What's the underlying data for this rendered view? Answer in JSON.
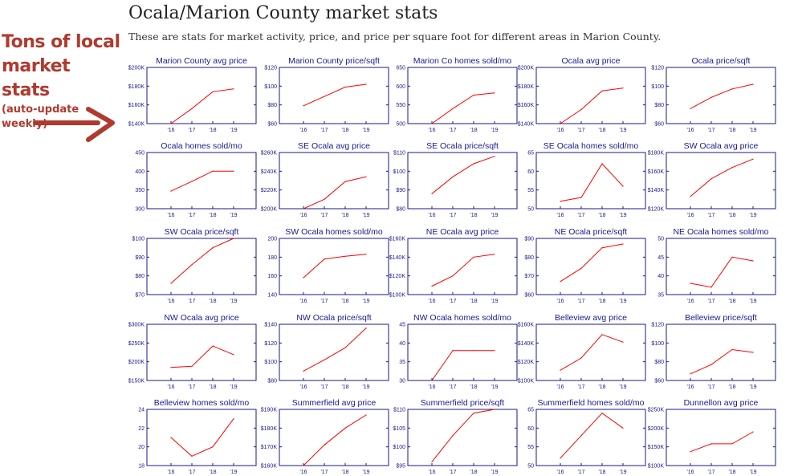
{
  "header": {
    "title": "Ocala/Marion County market stats",
    "subtitle": "These are stats for market activity, price, and price per square foot for different areas in Marion County."
  },
  "promo": {
    "line1": "Tons of local",
    "line2": "market stats",
    "line3": "(auto-update weekly)",
    "color": "#b03a2e",
    "icon": "arrow-right-icon"
  },
  "colors": {
    "axis": "#1a1a8c",
    "line": "#ff0000",
    "text": "#1a1a8c"
  },
  "chart_data": [
    {
      "type": "line",
      "title": "Marion County avg price",
      "categories": [
        "'16",
        "'17",
        "'18",
        "'19"
      ],
      "values": [
        140000,
        156000,
        174000,
        177000
      ],
      "ylim": [
        140000,
        200000
      ],
      "yticks": [
        140000,
        160000,
        180000,
        200000
      ],
      "yticklabels": [
        "$140K",
        "$160K",
        "$180K",
        "$200K"
      ]
    },
    {
      "type": "line",
      "title": "Marion County price/sqft",
      "categories": [
        "'16",
        "'17",
        "'18",
        "'19"
      ],
      "values": [
        79,
        89,
        99,
        102
      ],
      "ylim": [
        60,
        120
      ],
      "yticks": [
        60,
        80,
        100,
        120
      ],
      "yticklabels": [
        "$60",
        "$80",
        "$100",
        "$120"
      ]
    },
    {
      "type": "line",
      "title": "Marion Co homes sold/mo",
      "categories": [
        "'16",
        "'17",
        "'18",
        "'19"
      ],
      "values": [
        500,
        540,
        576,
        582
      ],
      "ylim": [
        500,
        650
      ],
      "yticks": [
        500,
        550,
        600,
        650
      ],
      "yticklabels": [
        "500",
        "550",
        "600",
        "650"
      ]
    },
    {
      "type": "line",
      "title": "Ocala avg price",
      "categories": [
        "'16",
        "'17",
        "'18",
        "'19"
      ],
      "values": [
        140000,
        155000,
        175000,
        178000
      ],
      "ylim": [
        140000,
        200000
      ],
      "yticks": [
        140000,
        160000,
        180000,
        200000
      ],
      "yticklabels": [
        "$140K",
        "$160K",
        "$180K",
        "$200K"
      ]
    },
    {
      "type": "line",
      "title": "Ocala price/sqft",
      "categories": [
        "'16",
        "'17",
        "'18",
        "'19"
      ],
      "values": [
        76,
        88,
        97,
        102
      ],
      "ylim": [
        60,
        120
      ],
      "yticks": [
        60,
        80,
        100,
        120
      ],
      "yticklabels": [
        "$60",
        "$80",
        "$100",
        "$120"
      ]
    },
    {
      "type": "line",
      "title": "Ocala homes sold/mo",
      "categories": [
        "'16",
        "'17",
        "'18",
        "'19"
      ],
      "values": [
        347,
        373,
        400,
        400
      ],
      "ylim": [
        300,
        450
      ],
      "yticks": [
        300,
        350,
        400,
        450
      ],
      "yticklabels": [
        "300",
        "350",
        "400",
        "450"
      ]
    },
    {
      "type": "line",
      "title": "SE Ocala avg price",
      "categories": [
        "'16",
        "'17",
        "'18",
        "'19"
      ],
      "values": [
        200000,
        210000,
        229000,
        234000
      ],
      "ylim": [
        200000,
        260000
      ],
      "yticks": [
        200000,
        220000,
        240000,
        260000
      ],
      "yticklabels": [
        "$200K",
        "$220K",
        "$240K",
        "$260K"
      ]
    },
    {
      "type": "line",
      "title": "SE Ocala price/sqft",
      "categories": [
        "'16",
        "'17",
        "'18",
        "'19"
      ],
      "values": [
        88,
        97,
        104,
        108
      ],
      "ylim": [
        80,
        110
      ],
      "yticks": [
        80,
        90,
        100,
        110
      ],
      "yticklabels": [
        "$80",
        "$90",
        "$100",
        "$110"
      ]
    },
    {
      "type": "line",
      "title": "SE Ocala homes sold/mo",
      "categories": [
        "'16",
        "'17",
        "'18",
        "'19"
      ],
      "values": [
        52,
        53,
        62,
        56
      ],
      "ylim": [
        50,
        65
      ],
      "yticks": [
        50,
        55,
        60,
        65
      ],
      "yticklabels": [
        "50",
        "55",
        "60",
        "65"
      ]
    },
    {
      "type": "line",
      "title": "SW Ocala avg price",
      "categories": [
        "'16",
        "'17",
        "'18",
        "'19"
      ],
      "values": [
        133000,
        152000,
        164000,
        173000
      ],
      "ylim": [
        120000,
        180000
      ],
      "yticks": [
        120000,
        140000,
        160000,
        180000
      ],
      "yticklabels": [
        "$120K",
        "$140K",
        "$160K",
        "$180K"
      ]
    },
    {
      "type": "line",
      "title": "SW Ocala price/sqft",
      "categories": [
        "'16",
        "'17",
        "'18",
        "'19"
      ],
      "values": [
        76,
        86,
        95,
        100
      ],
      "ylim": [
        70,
        100
      ],
      "yticks": [
        70,
        80,
        90,
        100
      ],
      "yticklabels": [
        "$70",
        "$80",
        "$90",
        "$100"
      ]
    },
    {
      "type": "line",
      "title": "SW Ocala homes sold/mo",
      "categories": [
        "'16",
        "'17",
        "'18",
        "'19"
      ],
      "values": [
        158,
        178,
        181,
        183
      ],
      "ylim": [
        140,
        200
      ],
      "yticks": [
        140,
        160,
        180,
        200
      ],
      "yticklabels": [
        "140",
        "160",
        "180",
        "200"
      ]
    },
    {
      "type": "line",
      "title": "NE Ocala avg price",
      "categories": [
        "'16",
        "'17",
        "'18",
        "'19"
      ],
      "values": [
        109000,
        120000,
        140000,
        143000
      ],
      "ylim": [
        100000,
        160000
      ],
      "yticks": [
        100000,
        120000,
        140000,
        160000
      ],
      "yticklabels": [
        "$100K",
        "$120K",
        "$140K",
        "$160K"
      ]
    },
    {
      "type": "line",
      "title": "NE Ocala price/sqft",
      "categories": [
        "'16",
        "'17",
        "'18",
        "'19"
      ],
      "values": [
        67,
        74,
        85,
        87
      ],
      "ylim": [
        60,
        90
      ],
      "yticks": [
        60,
        70,
        80,
        90
      ],
      "yticklabels": [
        "$60",
        "$70",
        "$80",
        "$90"
      ]
    },
    {
      "type": "line",
      "title": "NE Ocala homes sold/mo",
      "categories": [
        "'16",
        "'17",
        "'18",
        "'19"
      ],
      "values": [
        38,
        37,
        45,
        44
      ],
      "ylim": [
        35,
        50
      ],
      "yticks": [
        35,
        40,
        45,
        50
      ],
      "yticklabels": [
        "35",
        "40",
        "45",
        "50"
      ]
    },
    {
      "type": "line",
      "title": "NW Ocala avg price",
      "categories": [
        "'16",
        "'17",
        "'18",
        "'19"
      ],
      "values": [
        185000,
        188000,
        242000,
        219000
      ],
      "ylim": [
        150000,
        300000
      ],
      "yticks": [
        150000,
        200000,
        250000,
        300000
      ],
      "yticklabels": [
        "$150K",
        "$200K",
        "$250K",
        "$300K"
      ]
    },
    {
      "type": "line",
      "title": "NW Ocala price/sqft",
      "categories": [
        "'16",
        "'17",
        "'18",
        "'19"
      ],
      "values": [
        90,
        102,
        115,
        136
      ],
      "ylim": [
        80,
        140
      ],
      "yticks": [
        80,
        100,
        120,
        140
      ],
      "yticklabels": [
        "$80",
        "$100",
        "$120",
        "$140"
      ]
    },
    {
      "type": "line",
      "title": "NW Ocala homes sold/mo",
      "categories": [
        "'16",
        "'17",
        "'18",
        "'19"
      ],
      "values": [
        30,
        38,
        38,
        38
      ],
      "ylim": [
        30,
        45
      ],
      "yticks": [
        30,
        35,
        40,
        45
      ],
      "yticklabels": [
        "30",
        "35",
        "40",
        "45"
      ]
    },
    {
      "type": "line",
      "title": "Belleview avg price",
      "categories": [
        "'16",
        "'17",
        "'18",
        "'19"
      ],
      "values": [
        111000,
        124000,
        149000,
        141000
      ],
      "ylim": [
        100000,
        160000
      ],
      "yticks": [
        100000,
        120000,
        140000,
        160000
      ],
      "yticklabels": [
        "$100K",
        "$120K",
        "$140K",
        "$160K"
      ]
    },
    {
      "type": "line",
      "title": "Belleview price/sqft",
      "categories": [
        "'16",
        "'17",
        "'18",
        "'19"
      ],
      "values": [
        67,
        77,
        93,
        90
      ],
      "ylim": [
        60,
        120
      ],
      "yticks": [
        60,
        80,
        100,
        120
      ],
      "yticklabels": [
        "$60",
        "$80",
        "$100",
        "$120"
      ]
    },
    {
      "type": "line",
      "title": "Belleview homes sold/mo",
      "categories": [
        "'16",
        "'17",
        "'18",
        "'19"
      ],
      "values": [
        21,
        19,
        20,
        23
      ],
      "ylim": [
        18,
        24
      ],
      "yticks": [
        18,
        20,
        22,
        24
      ],
      "yticklabels": [
        "18",
        "20",
        "22",
        "24"
      ]
    },
    {
      "type": "line",
      "title": "Summerfield avg price",
      "categories": [
        "'16",
        "'17",
        "'18",
        "'19"
      ],
      "values": [
        160000,
        171000,
        180000,
        187000
      ],
      "ylim": [
        160000,
        190000
      ],
      "yticks": [
        160000,
        170000,
        180000,
        190000
      ],
      "yticklabels": [
        "$160K",
        "$170K",
        "$180K",
        "$190K"
      ]
    },
    {
      "type": "line",
      "title": "Summerfield price/sqft",
      "categories": [
        "'16",
        "'17",
        "'18",
        "'19"
      ],
      "values": [
        96,
        103,
        109,
        110
      ],
      "ylim": [
        95,
        110
      ],
      "yticks": [
        95,
        100,
        105,
        110
      ],
      "yticklabels": [
        "$95",
        "$100",
        "$105",
        "$110"
      ]
    },
    {
      "type": "line",
      "title": "Summerfield homes sold/mo",
      "categories": [
        "'16",
        "'17",
        "'18",
        "'19"
      ],
      "values": [
        52,
        58,
        64,
        60
      ],
      "ylim": [
        50,
        65
      ],
      "yticks": [
        50,
        55,
        60,
        65
      ],
      "yticklabels": [
        "50",
        "55",
        "60",
        "65"
      ]
    },
    {
      "type": "line",
      "title": "Dunnellon avg price",
      "categories": [
        "'16",
        "'17",
        "'18",
        "'19"
      ],
      "values": [
        137000,
        158000,
        158000,
        190000
      ],
      "ylim": [
        100000,
        250000
      ],
      "yticks": [
        100000,
        150000,
        200000,
        250000
      ],
      "yticklabels": [
        "$100K",
        "$150K",
        "$200K",
        "$250K"
      ]
    }
  ]
}
